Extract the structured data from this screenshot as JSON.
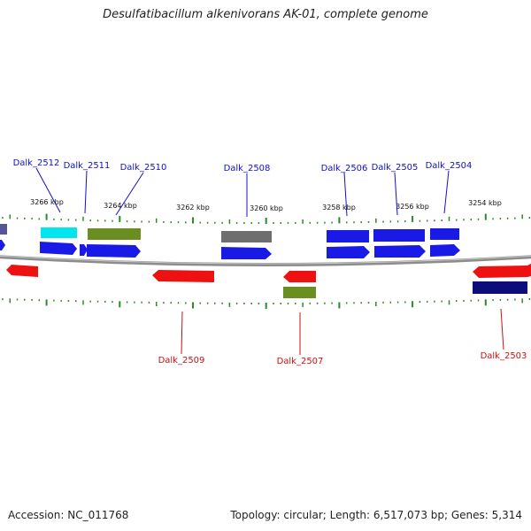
{
  "title": "Desulfatibacillum alkenivorans AK-01, complete genome",
  "footer": {
    "accession": "Accession: NC_011768",
    "summary": "Topology: circular; Length: 6,517,073 bp; Genes: 5,314"
  },
  "colors": {
    "label_top": "#1010cc",
    "label_bottom": "#cc1010",
    "tick": "#2a8a2a",
    "backbone": "#8c8c8c",
    "gene_forward": "#1a1ae6",
    "gene_reverse": "#ee1111",
    "gene_green": "#6b8e23",
    "gene_gray": "#6e6e6e",
    "gene_cyan": "#00e5ee",
    "gene_navy": "#0c0c7a"
  },
  "scale_labels": [
    "3266 kbp",
    "3264 kbp",
    "3262 kbp",
    "3260 kbp",
    "3258 kbp",
    "3256 kbp",
    "3254 kbp"
  ],
  "genes": [
    {
      "name": "Dalk_2512",
      "strand": "top"
    },
    {
      "name": "Dalk_2511",
      "strand": "top"
    },
    {
      "name": "Dalk_2510",
      "strand": "top"
    },
    {
      "name": "Dalk_2508",
      "strand": "top"
    },
    {
      "name": "Dalk_2506",
      "strand": "top"
    },
    {
      "name": "Dalk_2505",
      "strand": "top"
    },
    {
      "name": "Dalk_2504",
      "strand": "top"
    },
    {
      "name": "Dalk_2509",
      "strand": "bottom"
    },
    {
      "name": "Dalk_2507",
      "strand": "bottom"
    },
    {
      "name": "Dalk_2503",
      "strand": "bottom"
    }
  ]
}
